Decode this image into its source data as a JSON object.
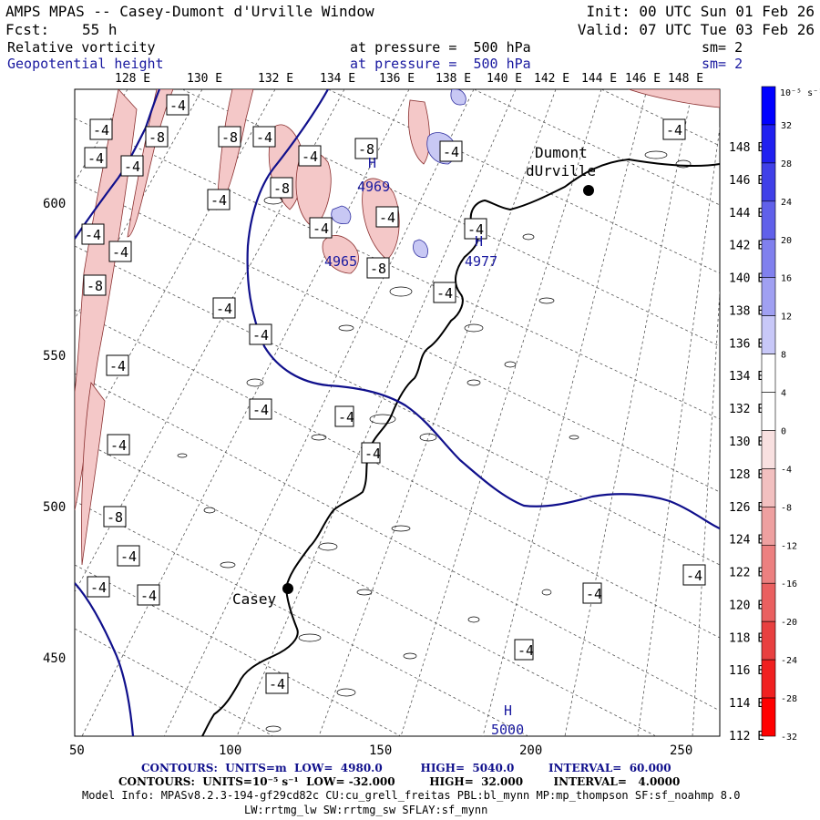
{
  "header": {
    "model_title": "AMPS MPAS -- Casey-Dumont d'Urville Window",
    "init": "Init: 00 UTC Sun 01 Feb 26",
    "forecast_label": "Fcst:",
    "forecast_hours": "55 h",
    "valid": "Valid: 07 UTC Tue 03 Feb 26",
    "field1_name": "Relative vorticity",
    "field1_level": "at pressure =  500 hPa",
    "field1_sm": "sm= 2",
    "field2_name": "Geopotential height",
    "field2_level": "at pressure =  500 hPa",
    "field2_sm": "sm= 2"
  },
  "axes": {
    "top_lon_labels": [
      "128 E",
      "130 E",
      "132 E",
      "134 E",
      "136 E",
      "138 E",
      "140 E",
      "142 E",
      "144 E",
      "146 E",
      "148 E"
    ],
    "right_lon_labels": [
      "148 E",
      "146 E",
      "144 E",
      "142 E",
      "140 E",
      "138 E",
      "136 E",
      "134 E",
      "132 E",
      "130 E",
      "128 E",
      "126 E",
      "124 E",
      "122 E",
      "120 E",
      "118 E",
      "116 E",
      "114 E",
      "112 E"
    ],
    "x_ticks": [
      "50",
      "100",
      "150",
      "200",
      "250"
    ],
    "y_ticks": [
      "600",
      "550",
      "500",
      "450"
    ]
  },
  "places": {
    "dumont_line1": "Dumont",
    "dumont_line2": "dUrville",
    "casey": "Casey"
  },
  "height_labels": [
    "4969",
    "4965",
    "4977",
    "5000"
  ],
  "highs": [
    "H",
    "H"
  ],
  "vort_labels": [
    "-4",
    "-8"
  ],
  "colorbar": {
    "unit": "10⁻⁵ s⁻¹",
    "ticks": [
      "32",
      "28",
      "24",
      "20",
      "16",
      "12",
      "8",
      "4",
      "0",
      "-4",
      "-8",
      "-12",
      "-16",
      "-20",
      "-24",
      "-28",
      "-32"
    ],
    "colors": [
      "#0000ff",
      "#2020f0",
      "#4040e8",
      "#6060ea",
      "#8080ee",
      "#a0a0f2",
      "#c8c8f8",
      "#ffffff",
      "#ffffff",
      "#f8e0e0",
      "#f2c0c0",
      "#eea0a0",
      "#ec8080",
      "#ea6060",
      "#e84040",
      "#f02020",
      "#ff0000"
    ]
  },
  "footer": {
    "contours1": "CONTOURS:  UNITS=m  LOW=  4980.0          HIGH=  5040.0         INTERVAL=  60.000",
    "contours2": "CONTOURS:  UNITS=10⁻⁵ s⁻¹  LOW= -32.000         HIGH=  32.000        INTERVAL=   4.0000",
    "model_info": "Model Info: MPASv8.2.3-194-gf29cd82c CU:cu_grell_freitas PBL:bl_mynn MP:mp_thompson SF:sf_noahmp 8.0",
    "model_info2": "LW:rrtmg_lw SW:rrtmg_sw SFLAY:sf_mynn"
  },
  "colors": {
    "height_contour": "#10108c",
    "coast": "#000000",
    "neg_fill": "#f4c8c8",
    "pos_fill": "#c8c8f4",
    "text_blue": "#1a1aa0"
  }
}
